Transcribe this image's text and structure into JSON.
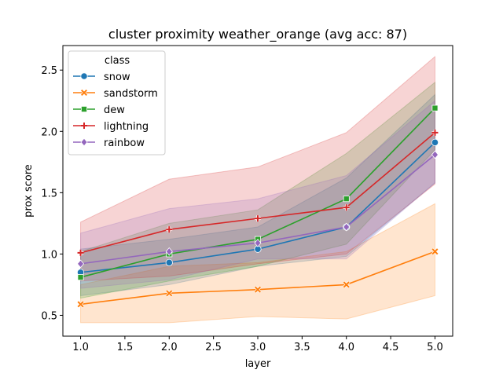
{
  "chart_data": {
    "type": "line",
    "title": "cluster proximity weather_orange (avg acc: 87)",
    "xlabel": "layer",
    "ylabel": "prox score",
    "x": [
      1,
      2,
      3,
      4,
      5
    ],
    "xlim": [
      0.8,
      5.2
    ],
    "ylim": [
      0.33,
      2.7
    ],
    "xticks": [
      "1.0",
      "1.5",
      "2.0",
      "2.5",
      "3.0",
      "3.5",
      "4.0",
      "4.5",
      "5.0"
    ],
    "yticks": [
      "0.5",
      "1.0",
      "1.5",
      "2.0",
      "2.5"
    ],
    "grid": false,
    "legend_title": "class",
    "legend_position": "upper-left",
    "series": [
      {
        "name": "snow",
        "color": "#1f77b4",
        "marker": "circle",
        "values": [
          0.85,
          0.93,
          1.04,
          1.22,
          1.91
        ],
        "lower": [
          0.66,
          0.75,
          0.9,
          0.98,
          1.58
        ],
        "upper": [
          1.04,
          1.12,
          1.22,
          1.62,
          2.3
        ]
      },
      {
        "name": "sandstorm",
        "color": "#ff7f0e",
        "marker": "x",
        "values": [
          0.59,
          0.68,
          0.71,
          0.75,
          1.02
        ],
        "lower": [
          0.44,
          0.44,
          0.49,
          0.47,
          0.66
        ],
        "upper": [
          0.75,
          0.9,
          0.93,
          1.02,
          1.41
        ]
      },
      {
        "name": "dew",
        "color": "#2ca02c",
        "marker": "square",
        "values": [
          0.81,
          1.0,
          1.12,
          1.45,
          2.19
        ],
        "lower": [
          0.64,
          0.78,
          0.9,
          1.08,
          1.85
        ],
        "upper": [
          1.02,
          1.25,
          1.36,
          1.82,
          2.4
        ]
      },
      {
        "name": "lightning",
        "color": "#d62728",
        "marker": "plus",
        "values": [
          1.01,
          1.2,
          1.29,
          1.38,
          1.99
        ],
        "lower": [
          0.78,
          0.82,
          0.92,
          1.0,
          1.57
        ],
        "upper": [
          1.26,
          1.61,
          1.71,
          1.99,
          2.61
        ]
      },
      {
        "name": "rainbow",
        "color": "#9467bd",
        "marker": "diamond",
        "values": [
          0.92,
          1.02,
          1.09,
          1.22,
          1.81
        ],
        "lower": [
          0.72,
          0.79,
          0.96,
          0.96,
          1.58
        ],
        "upper": [
          1.17,
          1.37,
          1.45,
          1.64,
          2.25
        ]
      }
    ]
  }
}
